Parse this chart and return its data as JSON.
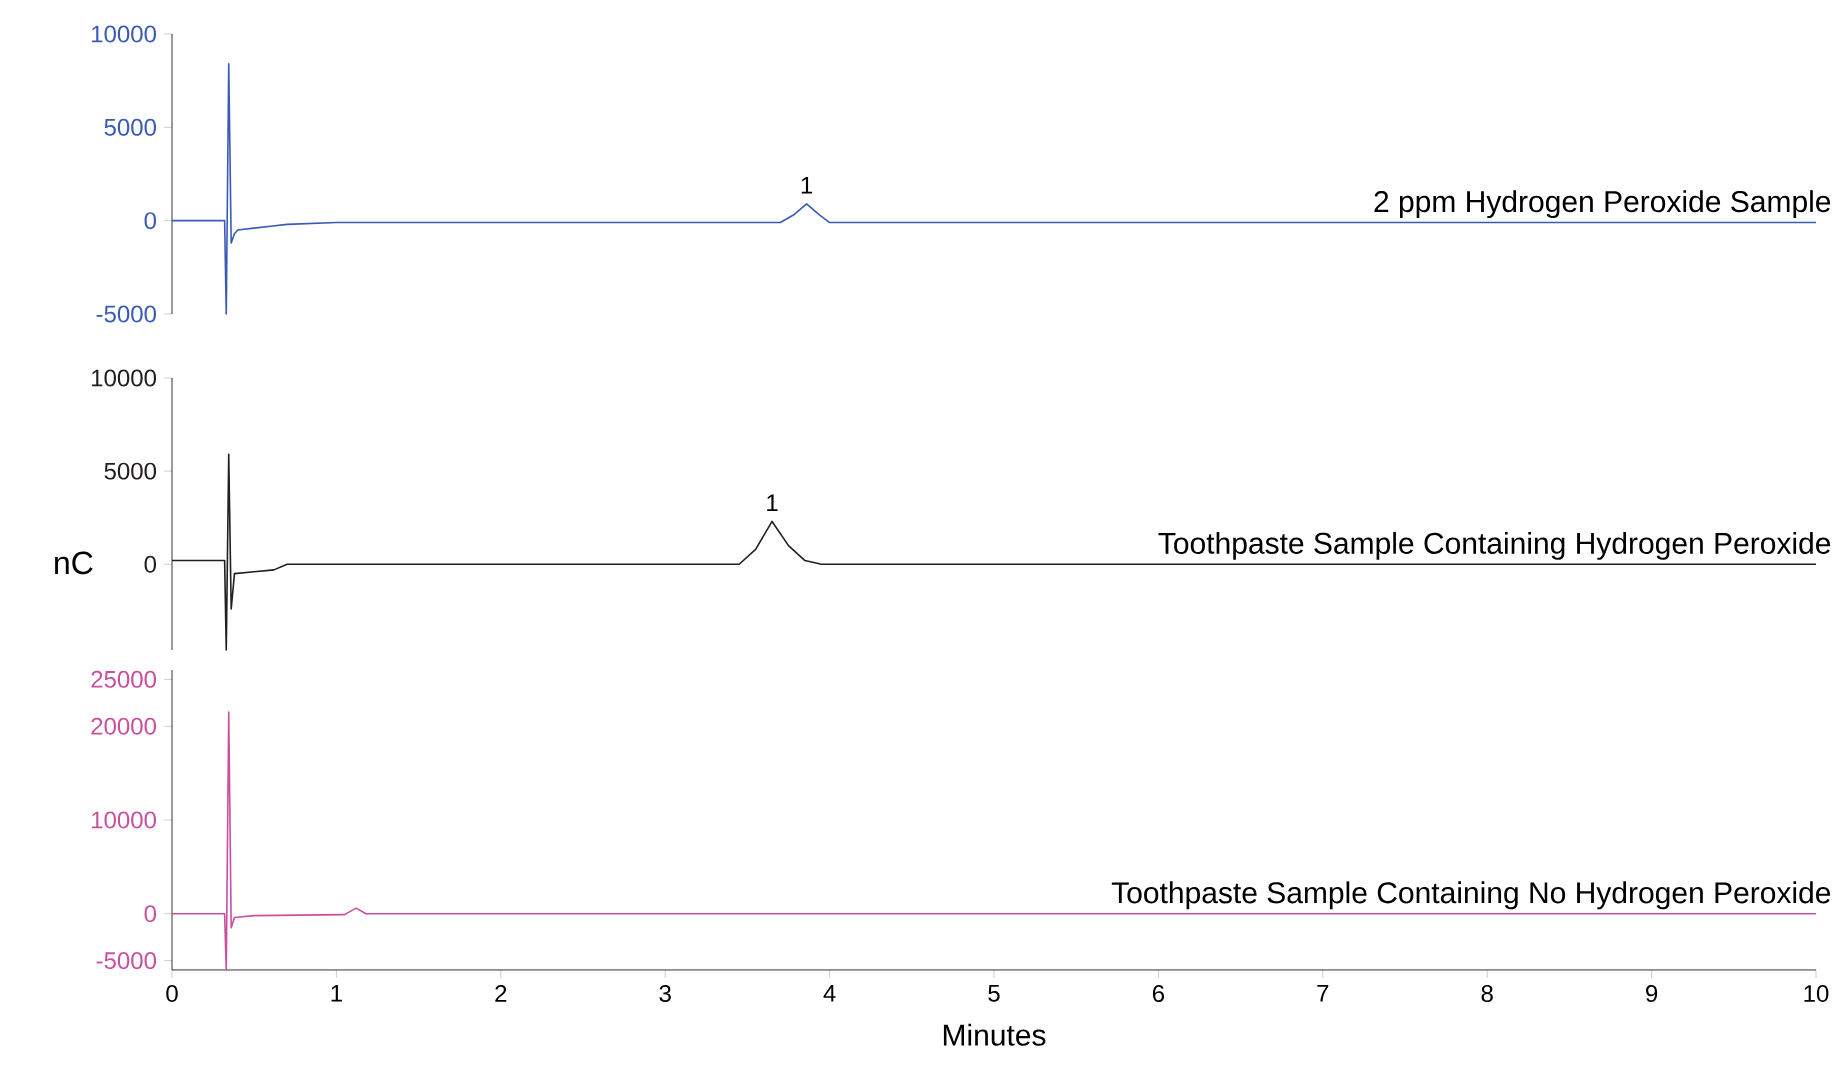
{
  "chart_data": [
    {
      "type": "line",
      "xlim": [
        0,
        10
      ],
      "ylim": [
        -5000,
        10000
      ],
      "yticks": [
        -5000,
        0,
        5000,
        10000
      ],
      "tick_labels": "y",
      "series": [
        {
          "name": "2 ppm Hydrogen Peroxide Sample",
          "color": "#3a5bb5",
          "x": [
            0,
            0.32,
            0.33,
            0.345,
            0.36,
            0.38,
            0.4,
            0.6,
            0.7,
            1.0,
            3.7,
            3.78,
            3.86,
            3.94,
            4.0,
            10
          ],
          "values": [
            0,
            0,
            -5000,
            8400,
            -1200,
            -700,
            -500,
            -300,
            -200,
            -100,
            -100,
            300,
            900,
            300,
            -100,
            -100
          ]
        }
      ],
      "annotations": [
        {
          "text": "1",
          "x": 3.86,
          "y": 900
        }
      ]
    },
    {
      "type": "line",
      "xlim": [
        0,
        10
      ],
      "ylim": [
        -4600,
        10000
      ],
      "yticks": [
        0,
        5000,
        10000
      ],
      "tick_labels": "y",
      "ylabel": "nC",
      "series": [
        {
          "name": "Toothpaste Sample Containing Hydrogen Peroxide",
          "color": "#231f20",
          "x": [
            0,
            0.32,
            0.33,
            0.345,
            0.36,
            0.38,
            0.5,
            0.62,
            0.7,
            3.45,
            3.55,
            3.65,
            3.75,
            3.85,
            3.95,
            10
          ],
          "values": [
            200,
            200,
            -4600,
            5900,
            -2400,
            -500,
            -400,
            -300,
            0,
            0,
            800,
            2300,
            1000,
            200,
            0,
            0
          ]
        }
      ],
      "annotations": [
        {
          "text": "1",
          "x": 3.65,
          "y": 2300
        }
      ]
    },
    {
      "type": "line",
      "xlim": [
        0,
        10
      ],
      "ylim": [
        -6000,
        26000
      ],
      "yticks": [
        -5000,
        0,
        10000,
        20000,
        25000
      ],
      "xticks": [
        0,
        1,
        2,
        3,
        4,
        5,
        6,
        7,
        8,
        9,
        10
      ],
      "xlabel": "Minutes",
      "series": [
        {
          "name": "Toothpaste Sample Containing No Hydrogen Peroxide",
          "color": "#c8509f",
          "x": [
            0,
            0.32,
            0.33,
            0.345,
            0.36,
            0.38,
            0.5,
            1.05,
            1.12,
            1.18,
            10
          ],
          "values": [
            0,
            0,
            -6000,
            21500,
            -1500,
            -400,
            -200,
            -100,
            600,
            0,
            0
          ]
        }
      ]
    }
  ]
}
